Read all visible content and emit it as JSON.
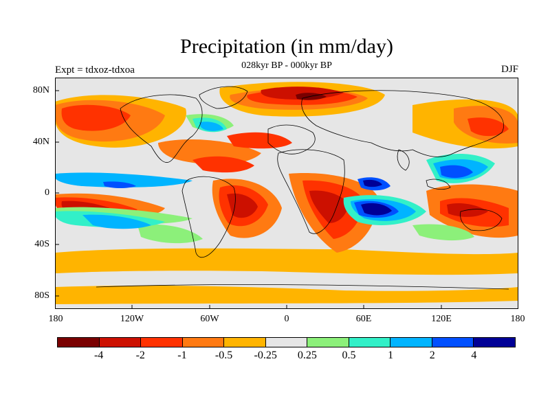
{
  "title": "Precipitation (in mm/day)",
  "subtitle": "028kyr BP - 000kyr BP",
  "left_label": "Expt = tdxoz-tdxoa",
  "right_label": "DJF",
  "map": {
    "background_color": "#e6e6e6",
    "lat_ticks": [
      "80N",
      "40N",
      "0",
      "40S",
      "80S"
    ],
    "lon_ticks": [
      "180",
      "120W",
      "60W",
      "0",
      "60E",
      "120E",
      "180"
    ]
  },
  "colorbar": {
    "colors": [
      "#7a0000",
      "#cc1000",
      "#ff3200",
      "#ff7a12",
      "#ffb400",
      "#e6e6e6",
      "#8cf07a",
      "#32f0c8",
      "#00b4ff",
      "#0050ff",
      "#000096"
    ],
    "labels": [
      "-4",
      "-2",
      "-1",
      "-0.5",
      "-0.25",
      "0.25",
      "0.5",
      "1",
      "2",
      "4"
    ]
  }
}
